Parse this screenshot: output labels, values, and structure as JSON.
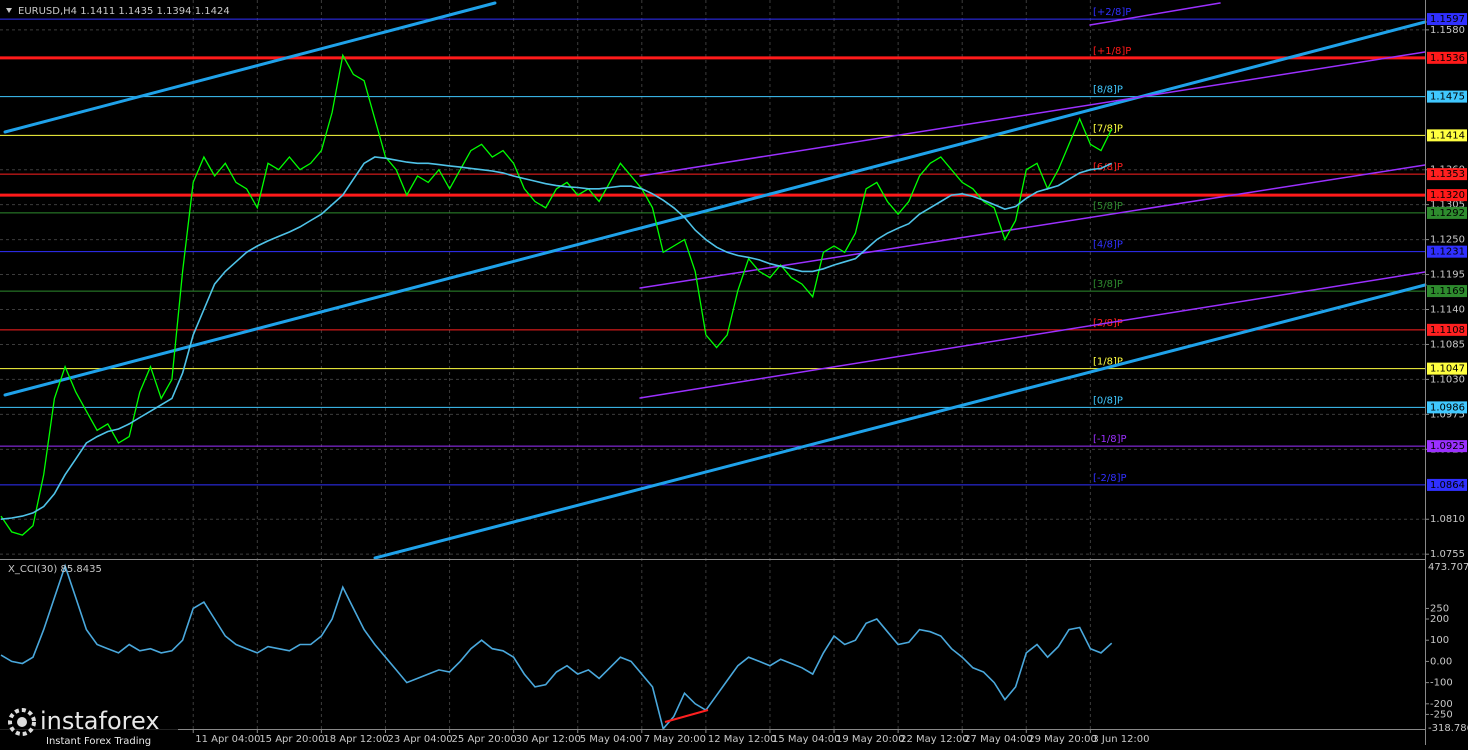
{
  "chart_data": [
    {
      "type": "line",
      "title": "EURUSD,H4  1.1411 1.1435 1.1394 1.1424",
      "categories": [
        null,
        null,
        null,
        null,
        null,
        null,
        null,
        null,
        null,
        null,
        null,
        null,
        null,
        null,
        null,
        null,
        null,
        null,
        "11 Apr 04:00",
        null,
        null,
        null,
        null,
        null,
        "15 Apr 20:00",
        null,
        null,
        null,
        null,
        null,
        "18 Apr 12:00",
        null,
        null,
        null,
        null,
        null,
        "23 Apr 04:00",
        null,
        null,
        null,
        null,
        null,
        "25 Apr 20:00",
        null,
        null,
        null,
        null,
        null,
        "30 Apr 12:00",
        null,
        null,
        null,
        null,
        null,
        "5 May 04:00",
        null,
        null,
        null,
        null,
        null,
        "7 May 20:00",
        null,
        null,
        null,
        null,
        null,
        "12 May 12:00",
        null,
        null,
        null,
        null,
        null,
        "15 May 04:00",
        null,
        null,
        null,
        null,
        null,
        "19 May 20:00",
        null,
        null,
        null,
        null,
        null,
        "22 May 12:00",
        null,
        null,
        null,
        null,
        null,
        "27 May 04:00",
        null,
        null,
        null,
        null,
        null,
        "29 May 20:00",
        null,
        null,
        null,
        null,
        null,
        "3 Jun 12:00",
        null,
        null
      ],
      "series": [
        {
          "color": "#00ff00",
          "values": [
            1.0815,
            1.079,
            1.0785,
            1.08,
            1.088,
            1.1,
            1.105,
            1.101,
            1.098,
            1.095,
            1.096,
            1.093,
            1.094,
            1.101,
            1.105,
            1.1,
            1.103,
            1.12,
            1.134,
            1.138,
            1.135,
            1.137,
            1.134,
            1.133,
            1.13,
            1.137,
            1.136,
            1.138,
            1.136,
            1.137,
            1.139,
            1.145,
            1.154,
            1.151,
            1.15,
            1.144,
            1.138,
            1.136,
            1.132,
            1.135,
            1.134,
            1.136,
            1.133,
            1.136,
            1.139,
            1.14,
            1.138,
            1.139,
            1.137,
            1.133,
            1.131,
            1.13,
            1.133,
            1.134,
            1.132,
            1.133,
            1.131,
            1.134,
            1.137,
            1.135,
            1.133,
            1.13,
            1.123,
            1.124,
            1.125,
            1.12,
            1.11,
            1.108,
            1.11,
            1.117,
            1.122,
            1.12,
            1.119,
            1.121,
            1.119,
            1.118,
            1.116,
            1.123,
            1.124,
            1.123,
            1.126,
            1.133,
            1.134,
            1.131,
            1.129,
            1.131,
            1.135,
            1.137,
            1.138,
            1.136,
            1.134,
            1.133,
            1.131,
            1.13,
            1.125,
            1.128,
            1.136,
            1.137,
            1.133,
            1.136,
            1.14,
            1.144,
            1.14,
            1.139,
            1.1424
          ]
        },
        {
          "color": "#4fc3e8",
          "values": [
            1.081,
            1.0812,
            1.0815,
            1.082,
            1.083,
            1.085,
            1.088,
            1.0905,
            1.093,
            1.094,
            1.0948,
            1.0952,
            1.096,
            1.097,
            1.098,
            1.099,
            1.1,
            1.104,
            1.11,
            1.114,
            1.118,
            1.12,
            1.1215,
            1.123,
            1.124,
            1.1248,
            1.1255,
            1.1262,
            1.127,
            1.128,
            1.129,
            1.1305,
            1.132,
            1.1345,
            1.137,
            1.138,
            1.1378,
            1.1375,
            1.1372,
            1.137,
            1.137,
            1.1368,
            1.1366,
            1.1364,
            1.1362,
            1.136,
            1.1358,
            1.1355,
            1.135,
            1.1346,
            1.1342,
            1.1338,
            1.1335,
            1.1333,
            1.1332,
            1.133,
            1.133,
            1.1332,
            1.1334,
            1.1334,
            1.133,
            1.1322,
            1.1312,
            1.13,
            1.1285,
            1.1265,
            1.125,
            1.1238,
            1.123,
            1.1225,
            1.1222,
            1.1218,
            1.1212,
            1.1208,
            1.1204,
            1.12,
            1.12,
            1.1204,
            1.121,
            1.1215,
            1.122,
            1.1235,
            1.125,
            1.126,
            1.1268,
            1.1275,
            1.129,
            1.13,
            1.131,
            1.132,
            1.1322,
            1.1318,
            1.1312,
            1.1305,
            1.1298,
            1.1302,
            1.1315,
            1.1325,
            1.133,
            1.1335,
            1.1345,
            1.1355,
            1.136,
            1.1362,
            1.137
          ]
        }
      ],
      "ylim": [
        1.0749,
        1.1627
      ],
      "yticks": [
        {
          "value": 1.158,
          "label": "1.1580"
        },
        {
          "value": 1.136,
          "label": "1.1360"
        },
        1.1305,
        {
          "value": 1.125,
          "label": "1.1250"
        },
        1.1195,
        {
          "value": 1.114,
          "label": "1.1140"
        },
        1.1085,
        {
          "value": 1.103,
          "label": "1.1030"
        },
        1.0975,
        {
          "value": 1.092,
          "label": "1.0920"
        },
        {
          "value": 1.081,
          "label": "1.0810"
        },
        1.0755
      ],
      "levels": [
        {
          "value": 1.1597,
          "label": "[+2/8]P",
          "color": "#3030ff",
          "width": 1
        },
        {
          "value": 1.1536,
          "label": "[+1/8]P",
          "color": "#ff1a1a",
          "width": 3
        },
        {
          "value": 1.1475,
          "label": "[8/8]P",
          "color": "#40c8ff",
          "width": 1
        },
        {
          "value": 1.1414,
          "label": "[7/8]P",
          "color": "#ffff40",
          "width": 1
        },
        {
          "value": 1.1353,
          "label": "[6/8]P",
          "color": "#ff2020",
          "width": 1
        },
        {
          "value": 1.1292,
          "label": "[5/8]P",
          "color": "#2e8b2e",
          "width": 1
        },
        {
          "value": 1.1231,
          "label": "[4/8]P",
          "color": "#3030ff",
          "width": 1
        },
        {
          "value": 1.1169,
          "label": "[3/8]P",
          "color": "#2e8b2e",
          "width": 1
        },
        {
          "value": 1.1108,
          "label": "[2/8]P",
          "color": "#ff2020",
          "width": 1
        },
        {
          "value": 1.1047,
          "label": "[1/8]P",
          "color": "#ffff40",
          "width": 1
        },
        {
          "value": 1.0986,
          "label": "[0/8]P",
          "color": "#40c8ff",
          "width": 1
        },
        {
          "value": 1.0925,
          "label": "[-1/8]P",
          "color": "#9b30ff",
          "width": 1
        },
        {
          "value": 1.0864,
          "label": "[-2/8]P",
          "color": "#3030ff",
          "width": 1
        }
      ],
      "hlines": [
        {
          "value": 1.132,
          "label": "1.1320",
          "color": "#ff1a1a",
          "width": 3
        }
      ],
      "grid": true
    },
    {
      "type": "line",
      "title": "X_CCI(30) 85.8435",
      "series": [
        {
          "color": "#4aa8dc",
          "values": [
            30,
            0,
            -10,
            20,
            150,
            300,
            450,
            300,
            150,
            80,
            60,
            40,
            80,
            50,
            60,
            40,
            50,
            100,
            250,
            280,
            200,
            120,
            80,
            60,
            40,
            70,
            60,
            50,
            80,
            80,
            120,
            200,
            350,
            250,
            150,
            80,
            20,
            -40,
            -100,
            -80,
            -60,
            -40,
            -50,
            0,
            60,
            100,
            60,
            50,
            20,
            -60,
            -120,
            -110,
            -50,
            -20,
            -60,
            -40,
            -80,
            -30,
            20,
            0,
            -60,
            -120,
            -318,
            -260,
            -150,
            -200,
            -230,
            -160,
            -90,
            -20,
            20,
            0,
            -20,
            10,
            -10,
            -30,
            -60,
            40,
            120,
            80,
            100,
            180,
            200,
            140,
            80,
            90,
            150,
            140,
            120,
            60,
            20,
            -30,
            -50,
            -100,
            -180,
            -120,
            40,
            80,
            20,
            70,
            150,
            160,
            60,
            40,
            86
          ]
        }
      ],
      "ylim": [
        -318.786,
        473.707
      ],
      "yticks": [
        250,
        200,
        100,
        {
          "value": 0,
          "label": "0.00"
        },
        -100,
        -200,
        -250
      ]
    }
  ],
  "watermark": {
    "brand": "instaforex",
    "tagline": "Instant Forex Trading"
  }
}
